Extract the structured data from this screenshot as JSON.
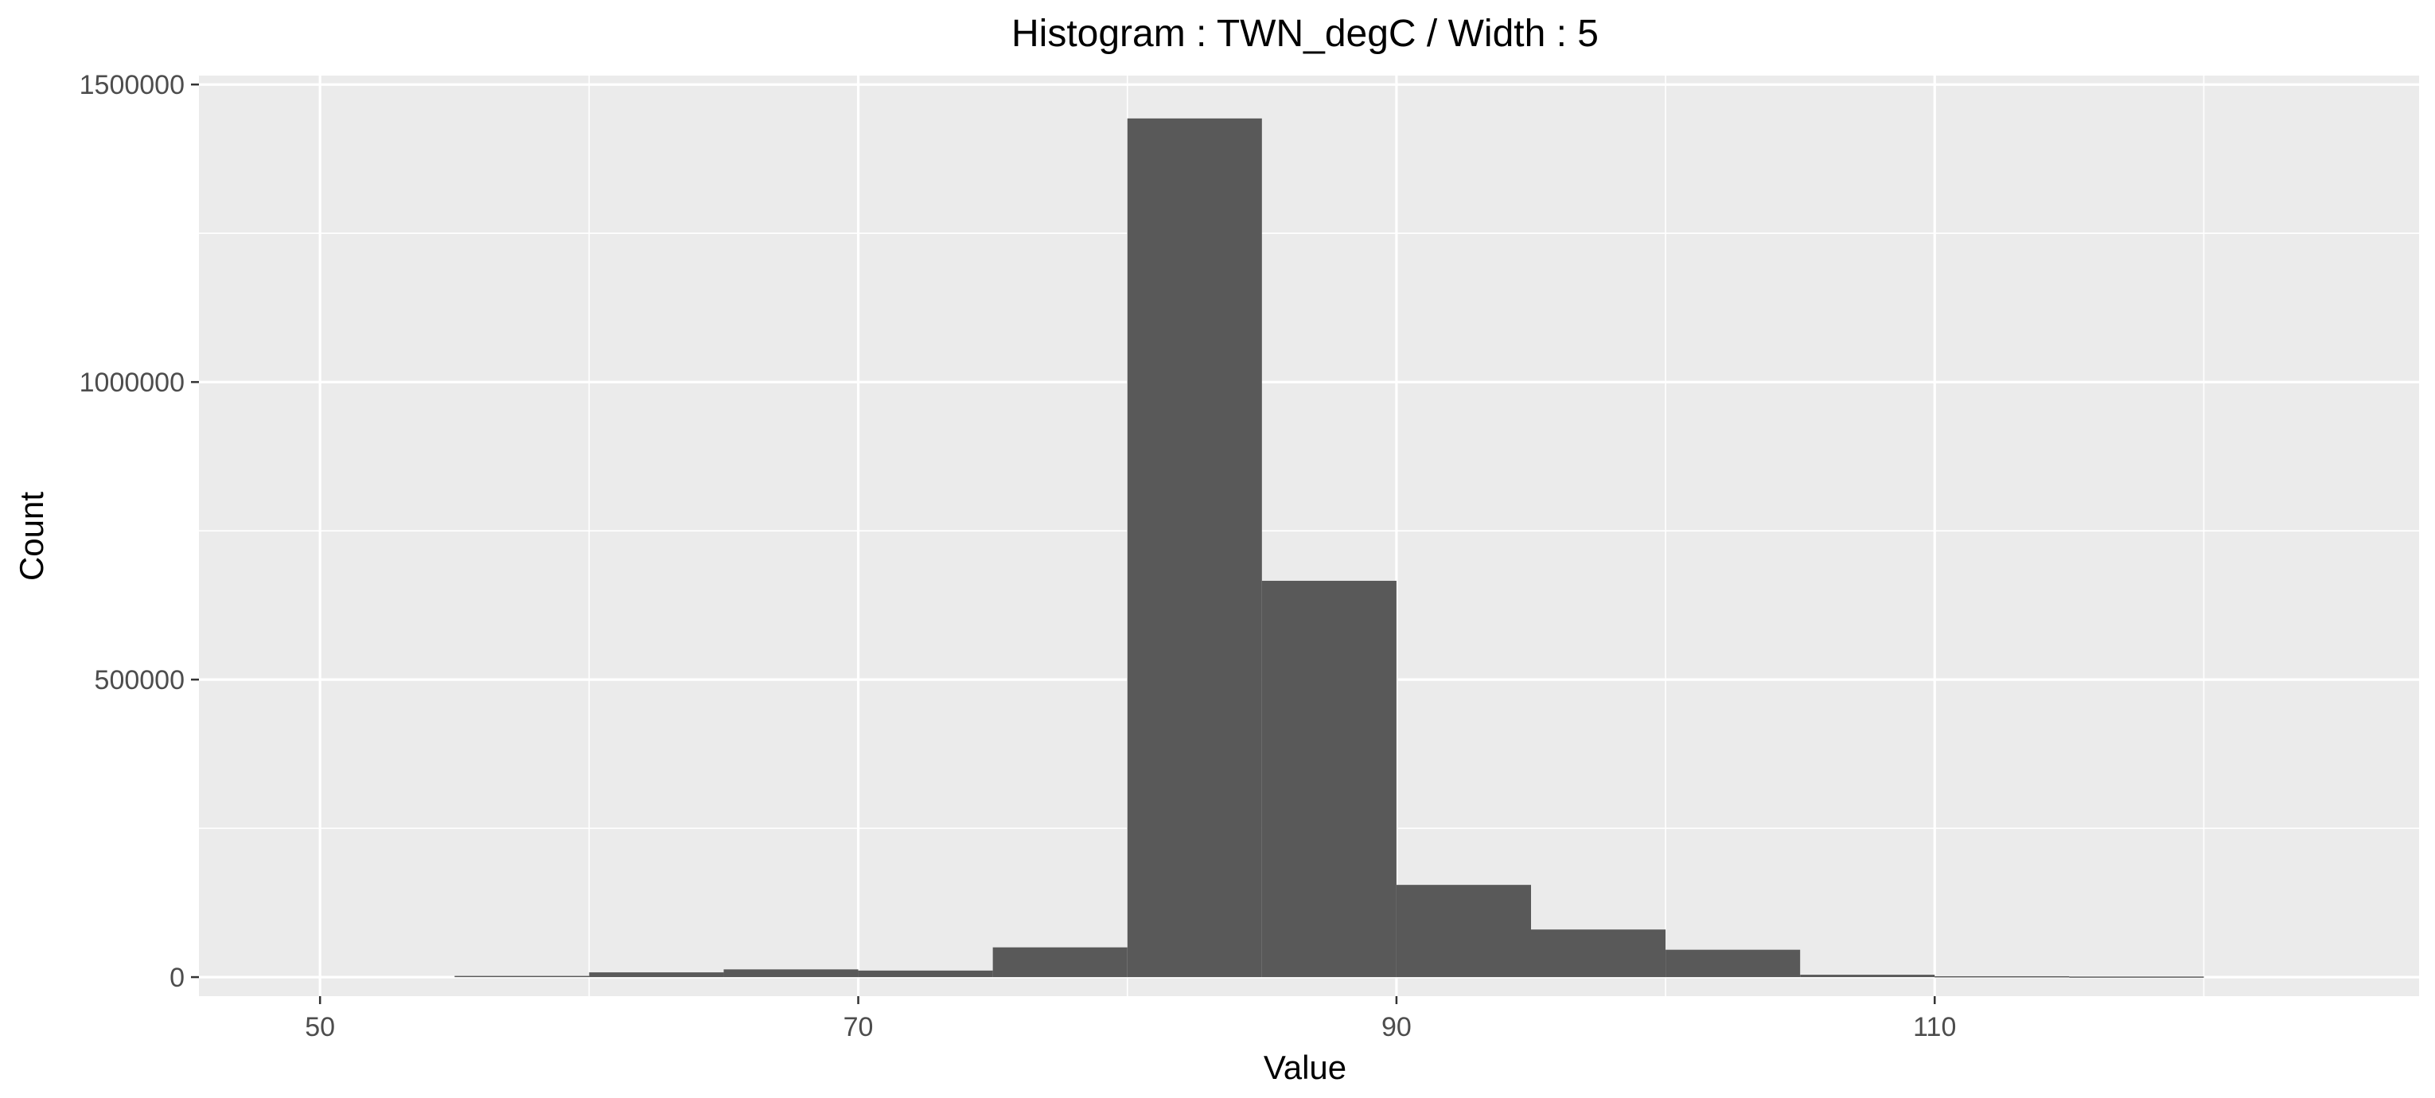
{
  "chart_data": {
    "type": "bar",
    "title": "Histogram : TWN_degC / Width : 5",
    "xlabel": "Value",
    "ylabel": "Count",
    "bin_width": 5,
    "xlim": [
      45.5,
      128
    ],
    "ylim": [
      -32000,
      1515000
    ],
    "x_ticks": [
      50,
      70,
      90,
      110
    ],
    "y_ticks": [
      0,
      500000,
      1000000,
      1500000
    ],
    "x_tick_labels": [
      "50",
      "70",
      "90",
      "110"
    ],
    "y_tick_labels": [
      "0",
      "500000",
      "1000000",
      "1500000"
    ],
    "grid": true,
    "bins": [
      {
        "start": 55,
        "end": 60,
        "value": 2000
      },
      {
        "start": 60,
        "end": 65,
        "value": 8000
      },
      {
        "start": 65,
        "end": 70,
        "value": 13000
      },
      {
        "start": 70,
        "end": 75,
        "value": 11000
      },
      {
        "start": 75,
        "end": 80,
        "value": 50000
      },
      {
        "start": 80,
        "end": 85,
        "value": 1443000
      },
      {
        "start": 85,
        "end": 90,
        "value": 666000
      },
      {
        "start": 90,
        "end": 95,
        "value": 155000
      },
      {
        "start": 95,
        "end": 100,
        "value": 80000
      },
      {
        "start": 100,
        "end": 105,
        "value": 46000
      },
      {
        "start": 105,
        "end": 110,
        "value": 4000
      },
      {
        "start": 110,
        "end": 115,
        "value": 1500
      },
      {
        "start": 115,
        "end": 120,
        "value": 1000
      }
    ],
    "colors": {
      "panel": "#EBEBEB",
      "grid_major": "#FFFFFF",
      "bar": "#595959",
      "tick_text": "#4D4D4D",
      "title_text": "#000000"
    }
  }
}
